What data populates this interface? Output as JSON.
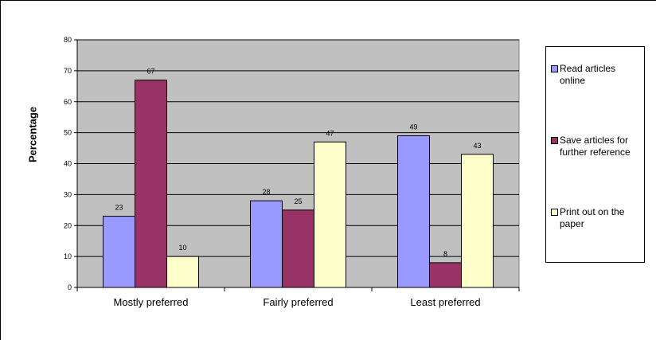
{
  "chart_data": {
    "type": "bar",
    "title": "",
    "xlabel": "",
    "ylabel": "Percentage",
    "ylim": [
      0,
      80
    ],
    "yticks": [
      0,
      10,
      20,
      30,
      40,
      50,
      60,
      70,
      80
    ],
    "grid": true,
    "legend_position": "right",
    "plot_background": "#C0C0C0",
    "categories": [
      "Mostly preferred",
      "Fairly preferred",
      "Least preferred"
    ],
    "series": [
      {
        "name": "Read articles online",
        "values": [
          23,
          28,
          49
        ],
        "color": "#9999FF"
      },
      {
        "name": "Save articles for further reference",
        "values": [
          67,
          25,
          8
        ],
        "color": "#993366"
      },
      {
        "name": "Print out on the paper",
        "values": [
          10,
          47,
          43
        ],
        "color": "#FFFFCC"
      }
    ]
  },
  "legend": {
    "items": [
      {
        "label": "Read articles online",
        "color": "#9999FF"
      },
      {
        "label": "Save articles for further reference",
        "color": "#993366"
      },
      {
        "label": "Print out on the paper",
        "color": "#FFFFCC"
      }
    ]
  }
}
